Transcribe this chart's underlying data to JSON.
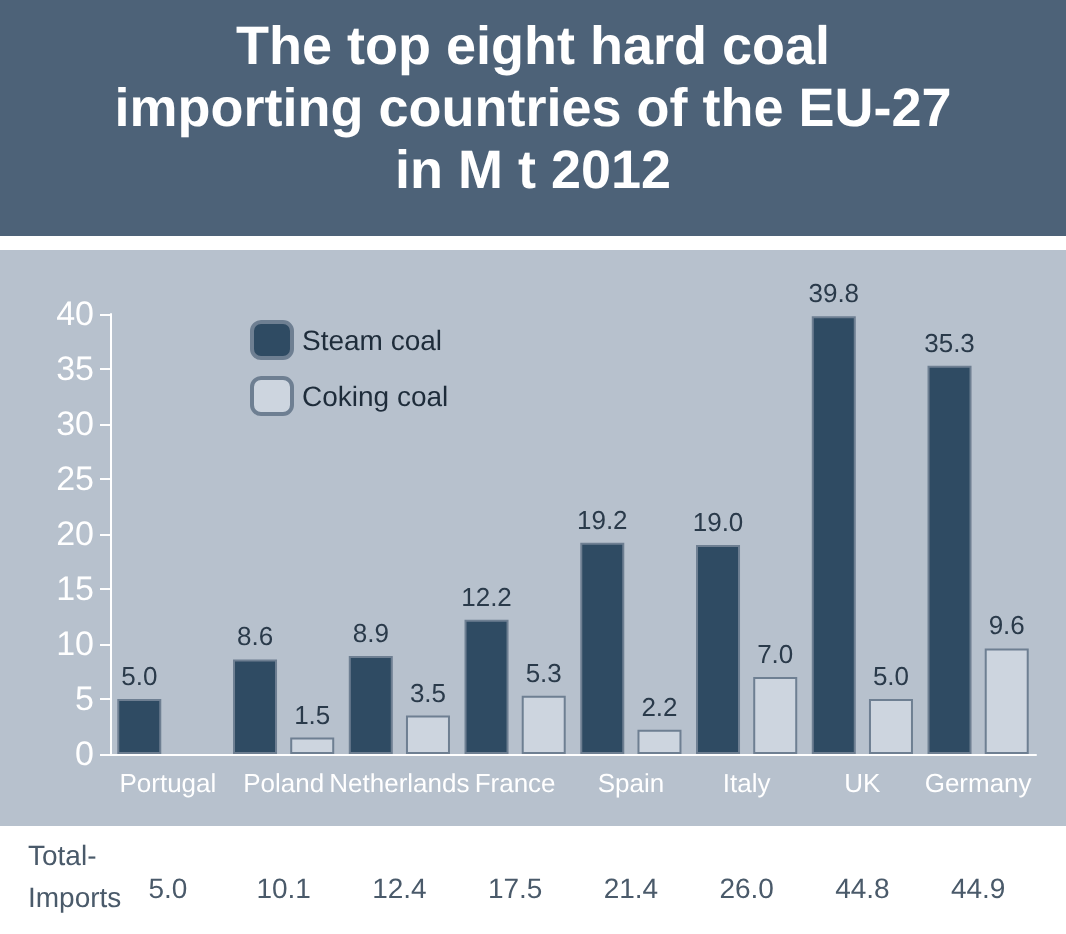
{
  "chart_data": {
    "type": "bar",
    "title": "The top eight hard coal\nimporting countries of the EU-27\nin M t 2012",
    "categories": [
      "Portugal",
      "Poland",
      "Netherlands",
      "France",
      "Spain",
      "Italy",
      "UK",
      "Germany"
    ],
    "series": [
      {
        "name": "Steam coal",
        "color": "#2f4b63",
        "values": [
          5.0,
          8.6,
          8.9,
          12.2,
          19.2,
          19.0,
          39.8,
          35.3
        ],
        "value_labels": [
          "5.0",
          "8.6",
          "8.9",
          "12.2",
          "19.2",
          "19.0",
          "39.8",
          "35.3"
        ]
      },
      {
        "name": "Coking coal",
        "color": "#cdd5df",
        "values": [
          null,
          1.5,
          3.5,
          5.3,
          2.2,
          7.0,
          5.0,
          9.6
        ],
        "value_labels": [
          null,
          "1.5",
          "3.5",
          "5.3",
          "2.2",
          "7.0",
          "5.0",
          "9.6"
        ]
      }
    ],
    "ylim": [
      0,
      40
    ],
    "yticks": [
      0,
      5,
      10,
      15,
      20,
      25,
      30,
      35,
      40
    ],
    "grid": false,
    "legend": "top left",
    "annotations": [
      "Total-\nImports",
      "5.0",
      "10.1",
      "12.4",
      "17.5",
      "21.4",
      "26.0",
      "44.8",
      "44.9"
    ]
  }
}
